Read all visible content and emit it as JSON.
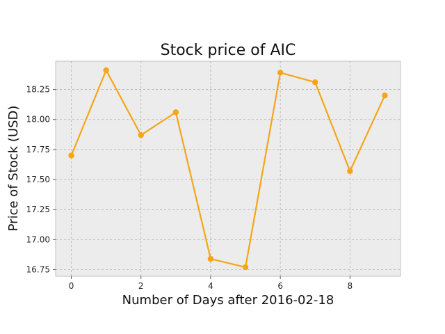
{
  "chart_data": {
    "type": "line",
    "title": "Stock price of AIC",
    "xlabel": "Number of Days after 2016-02-18",
    "ylabel": "Price of Stock (USD)",
    "x": [
      0,
      1,
      2,
      3,
      4,
      5,
      6,
      7,
      8,
      9
    ],
    "series": [
      {
        "values": [
          17.7,
          18.41,
          17.87,
          18.06,
          16.84,
          16.77,
          18.39,
          18.31,
          17.57,
          18.2
        ]
      }
    ],
    "xlim": [
      -0.45,
      9.45
    ],
    "ylim": [
      16.695,
      18.485
    ],
    "xticks": [
      0,
      2,
      4,
      6,
      8
    ],
    "xtick_labels": [
      "0",
      "2",
      "4",
      "6",
      "8"
    ],
    "yticks": [
      16.75,
      17.0,
      17.25,
      17.5,
      17.75,
      18.0,
      18.25
    ],
    "ytick_labels": [
      "16.75",
      "17.00",
      "17.25",
      "17.50",
      "17.75",
      "18.00",
      "18.25"
    ],
    "grid": true,
    "colors": {
      "line": "#f5a516",
      "plot_background": "#ececec",
      "grid": "#b0b0b0"
    }
  }
}
